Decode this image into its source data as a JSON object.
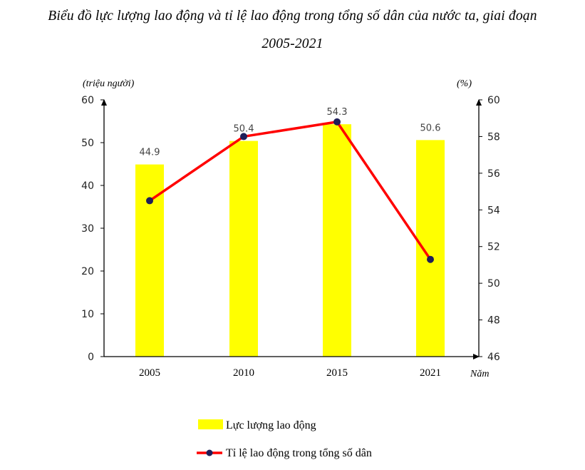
{
  "title_line1": "Biểu đồ lực lượng lao động và tỉ lệ lao động trong tổng số dân của nước ta, giai đoạn",
  "title_line2": "2005-2021",
  "chart_data": {
    "type": "bar-line",
    "categories": [
      "2005",
      "2010",
      "2015",
      "2021"
    ],
    "series": [
      {
        "name": "Lực lượng lao động",
        "type": "bar",
        "axis": "left",
        "values": [
          44.9,
          50.4,
          54.3,
          50.6
        ],
        "color": "#ffff00"
      },
      {
        "name": "Tỉ lệ lao động trong tổng số dân",
        "type": "line",
        "axis": "right",
        "values": [
          54.5,
          58.0,
          58.8,
          51.3
        ],
        "color": "#ff0000",
        "marker_color": "#1f1f5a"
      }
    ],
    "y_left": {
      "label": "(triệu người)",
      "ylim": [
        0,
        60
      ],
      "ticks": [
        0,
        10,
        20,
        30,
        40,
        50,
        60
      ]
    },
    "y_right": {
      "label": "(%)",
      "ylim": [
        46,
        60
      ],
      "ticks": [
        46,
        48,
        50,
        52,
        54,
        56,
        58,
        60
      ]
    },
    "xlabel": "Năm",
    "grid": false,
    "legend_position": "bottom"
  }
}
